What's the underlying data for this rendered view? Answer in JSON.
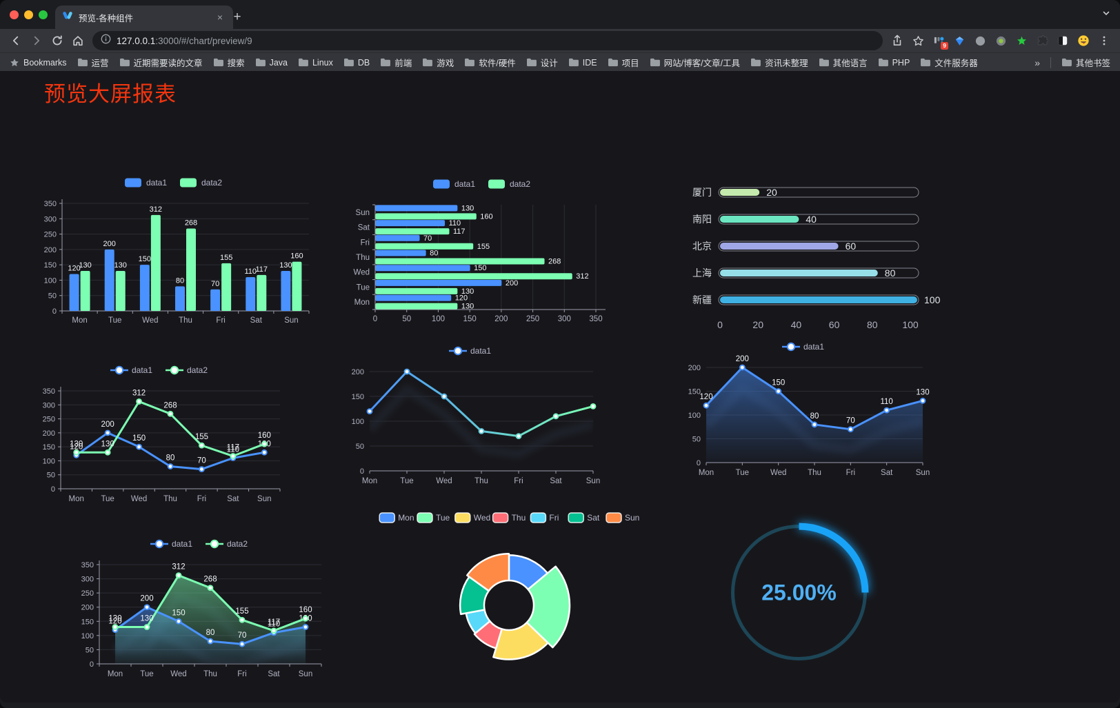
{
  "window": {
    "traffic_lights": [
      "#ff5f57",
      "#febc2e",
      "#28c840"
    ]
  },
  "tab": {
    "title": "预览-各种组件",
    "close_glyph": "×",
    "new_tab_glyph": "+"
  },
  "toolbar": {
    "url_host": "127.0.0.1",
    "url_rest": ":3000/#/chart/preview/9",
    "extensions": [
      {
        "name": "extension-blocks",
        "badge": "9"
      },
      {
        "name": "extension-gem",
        "badge": ""
      },
      {
        "name": "extension-circle-dark",
        "badge": ""
      },
      {
        "name": "extension-circle-green",
        "badge": ""
      },
      {
        "name": "extension-star-green",
        "badge": ""
      },
      {
        "name": "extensions-puzzle",
        "badge": ""
      },
      {
        "name": "extension-split-rect",
        "badge": ""
      },
      {
        "name": "extension-emoji",
        "badge": ""
      }
    ]
  },
  "bookmarks": {
    "label": "Bookmarks",
    "folders": [
      "运营",
      "近期需要读的文章",
      "搜索",
      "Java",
      "Linux",
      "DB",
      "前端",
      "游戏",
      "软件/硬件",
      "设计",
      "IDE",
      "项目",
      "网站/博客/文章/工具",
      "资讯未整理",
      "其他语言",
      "PHP",
      "文件服务器"
    ],
    "overflow_glyph": "»",
    "other_label": "其他书签"
  },
  "page": {
    "title": "预览大屏报表",
    "title_color": "#f4350f",
    "background": "#17171b"
  },
  "chart_data": [
    {
      "id": "bar-grouped",
      "type": "bar",
      "categories": [
        "Mon",
        "Tue",
        "Wed",
        "Thu",
        "Fri",
        "Sat",
        "Sun"
      ],
      "series": [
        {
          "name": "data1",
          "color": "#4992ff",
          "values": [
            120,
            200,
            150,
            80,
            70,
            110,
            130
          ]
        },
        {
          "name": "data2",
          "color": "#7cffb2",
          "values": [
            130,
            130,
            312,
            268,
            155,
            117,
            160
          ]
        }
      ],
      "ylim": [
        0,
        350
      ],
      "ytick": 50,
      "legend_position": "top",
      "grid": true
    },
    {
      "id": "bar-horizontal",
      "type": "hbar",
      "categories": [
        "Mon",
        "Tue",
        "Wed",
        "Thu",
        "Fri",
        "Sat",
        "Sun"
      ],
      "series": [
        {
          "name": "data1",
          "color": "#4992ff",
          "values": [
            120,
            200,
            150,
            80,
            70,
            110,
            130
          ]
        },
        {
          "name": "data2",
          "color": "#7cffb2",
          "values": [
            130,
            130,
            312,
            268,
            155,
            117,
            160
          ]
        }
      ],
      "xlim": [
        0,
        350
      ],
      "xtick": 50,
      "legend_position": "top",
      "grid": true
    },
    {
      "id": "capsule-bars",
      "type": "capsule",
      "items": [
        {
          "label": "厦门",
          "value": 20,
          "color": "#c4ebad"
        },
        {
          "label": "南阳",
          "value": 40,
          "color": "#6be6c1"
        },
        {
          "label": "北京",
          "value": 60,
          "color": "#a0a7e6"
        },
        {
          "label": "上海",
          "value": 80,
          "color": "#96dee8"
        },
        {
          "label": "新疆",
          "value": 100,
          "color": "#3fb1e3"
        }
      ],
      "xlim": [
        0,
        100
      ],
      "xticks": [
        0,
        20,
        40,
        60,
        80,
        100
      ]
    },
    {
      "id": "line-two",
      "type": "line",
      "categories": [
        "Mon",
        "Tue",
        "Wed",
        "Thu",
        "Fri",
        "Sat",
        "Sun"
      ],
      "series": [
        {
          "name": "data1",
          "color": "#4992ff",
          "values": [
            120,
            200,
            150,
            80,
            70,
            110,
            130
          ]
        },
        {
          "name": "data2",
          "color": "#7cffb2",
          "values": [
            130,
            130,
            312,
            268,
            155,
            117,
            160
          ]
        }
      ],
      "ylim": [
        0,
        350
      ],
      "ytick": 50,
      "axisLeft": true,
      "labels": true,
      "markers": true,
      "legend_position": "top"
    },
    {
      "id": "line-gradient",
      "type": "line",
      "categories": [
        "Mon",
        "Tue",
        "Wed",
        "Thu",
        "Fri",
        "Sat",
        "Sun"
      ],
      "series": [
        {
          "name": "data1",
          "color": "#4992ff",
          "values": [
            120,
            200,
            150,
            80,
            70,
            110,
            130
          ]
        }
      ],
      "gradient_to": "#7cffb2",
      "ylim": [
        0,
        200
      ],
      "ytick": 50,
      "edge": true,
      "shadow": 26,
      "markers": true,
      "labels": false,
      "legend_position": "top"
    },
    {
      "id": "area-single",
      "type": "line",
      "categories": [
        "Mon",
        "Tue",
        "Wed",
        "Thu",
        "Fri",
        "Sat",
        "Sun"
      ],
      "series": [
        {
          "name": "data1",
          "color": "#4992ff",
          "values": [
            120,
            200,
            150,
            80,
            70,
            110,
            130
          ],
          "area": true
        }
      ],
      "ylim": [
        0,
        200
      ],
      "ytick": 50,
      "edge": true,
      "shadow": 30,
      "markers": true,
      "labels": true,
      "legend_position": "top"
    },
    {
      "id": "area-two",
      "type": "line",
      "categories": [
        "Mon",
        "Tue",
        "Wed",
        "Thu",
        "Fri",
        "Sat",
        "Sun"
      ],
      "series": [
        {
          "name": "data1",
          "color": "#4992ff",
          "values": [
            120,
            200,
            150,
            80,
            70,
            110,
            130
          ],
          "area": true
        },
        {
          "name": "data2",
          "color": "#7cffb2",
          "values": [
            130,
            130,
            312,
            268,
            155,
            117,
            160
          ],
          "area": true
        }
      ],
      "ylim": [
        0,
        350
      ],
      "ytick": 50,
      "axisLeft": true,
      "shadow": 30,
      "markers": true,
      "labels": true,
      "legend_position": "top"
    },
    {
      "id": "donut-rose",
      "type": "pie",
      "items": [
        {
          "label": "Mon",
          "value": 120,
          "color": "#4992ff"
        },
        {
          "label": "Tue",
          "value": 200,
          "color": "#7cffb2"
        },
        {
          "label": "Wed",
          "value": 150,
          "color": "#fddd60"
        },
        {
          "label": "Thu",
          "value": 80,
          "color": "#ff6e76"
        },
        {
          "label": "Fri",
          "value": 70,
          "color": "#58d9f9"
        },
        {
          "label": "Sat",
          "value": 110,
          "color": "#05c091"
        },
        {
          "label": "Sun",
          "value": 130,
          "color": "#ff8a45"
        }
      ],
      "legend_position": "top",
      "rose": true
    },
    {
      "id": "gauge-percent",
      "type": "gauge",
      "value": 25,
      "label": "25.00%",
      "color": "#19a3f7",
      "track": "#1d4657",
      "text_color": "#4fb0f5"
    }
  ]
}
